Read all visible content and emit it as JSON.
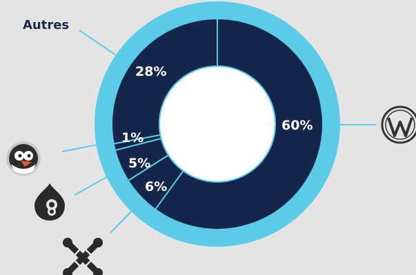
{
  "chart_data": {
    "type": "donut",
    "title": "",
    "series": [
      {
        "name": "WordPress",
        "value": 60,
        "label": "60%",
        "icon": "wordpress-logo-icon"
      },
      {
        "name": "Joomla",
        "value": 6,
        "label": "6%",
        "icon": "joomla-logo-icon"
      },
      {
        "name": "Drupal",
        "value": 5,
        "label": "5%",
        "icon": "drupal-logo-icon"
      },
      {
        "name": "PrestaShop",
        "value": 1,
        "label": "1%",
        "icon": "prestashop-logo-icon"
      },
      {
        "name": "Autres",
        "value": 28,
        "label": "28%",
        "icon": ""
      }
    ],
    "category_labels": {
      "autres": "Autres"
    },
    "colors": {
      "background": "#e4e4e4",
      "ring_outer": "#5bcbe8",
      "slice_fill": "#16264a",
      "slice_divider": "#5bcbe8",
      "center": "#ffffff",
      "leader_line": "#5bcbe8",
      "text_dark": "#1c2a48"
    }
  }
}
